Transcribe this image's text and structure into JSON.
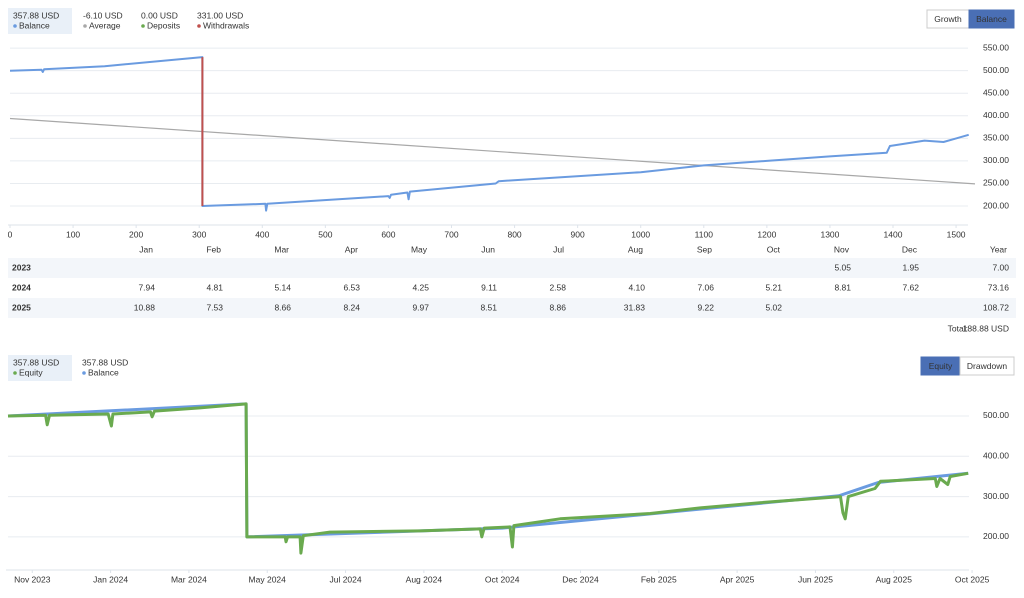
{
  "panels": [
    {
      "stats": [
        {
          "value": "357.88 USD",
          "label": "Balance",
          "color": "#6a9be0"
        },
        {
          "value": "-6.10 USD",
          "label": "Average",
          "color": "#a8a8a8"
        },
        {
          "value": "0.00 USD",
          "label": "Deposits",
          "color": "#6aaa4f"
        },
        {
          "value": "331.00 USD",
          "label": "Withdrawals",
          "color": "#c0504d"
        }
      ],
      "buttons": [
        "Growth",
        "Balance"
      ],
      "active": 1
    },
    {
      "stats": [
        {
          "value": "357.88 USD",
          "label": "Equity",
          "color": "#6aaa4f"
        },
        {
          "value": "357.88 USD",
          "label": "Balance",
          "color": "#6a9be0"
        }
      ],
      "buttons": [
        "Equity",
        "Drawdown"
      ],
      "active": 0
    }
  ],
  "chart_data": [
    {
      "type": "line",
      "grid": true,
      "xlim": [
        0,
        1530
      ],
      "xticks": [
        0,
        100,
        200,
        300,
        400,
        500,
        600,
        700,
        800,
        900,
        1000,
        1100,
        1200,
        1300,
        1400,
        1500
      ],
      "ylim": [
        158,
        568
      ],
      "yticks": [
        {
          "value": 200,
          "label": "200.00"
        },
        {
          "value": 250,
          "label": "250.00"
        },
        {
          "value": 300,
          "label": "300.00"
        },
        {
          "value": 350,
          "label": "350.00"
        },
        {
          "value": 400,
          "label": "400.00"
        },
        {
          "value": 450,
          "label": "450.00"
        },
        {
          "value": 500,
          "label": "500.00"
        },
        {
          "value": 550,
          "label": "550.00"
        }
      ],
      "series": [
        {
          "name": "Average",
          "color": "#a8a8a8",
          "x": [
            0,
            1530
          ],
          "values": [
            394,
            249
          ]
        },
        {
          "name": "Balance",
          "color": "#6a9be0",
          "x": [
            0,
            50,
            52,
            54,
            150,
            305,
            305,
            405,
            406,
            408,
            600,
            602,
            604,
            630,
            632,
            634,
            770,
            775,
            1000,
            1100,
            1200,
            1300,
            1390,
            1395,
            1450,
            1480,
            1500,
            1520
          ],
          "values": [
            500,
            502,
            497,
            503,
            510,
            530,
            200,
            205,
            190,
            205,
            222,
            218,
            225,
            230,
            215,
            232,
            250,
            255,
            275,
            290,
            300,
            310,
            318,
            333,
            345,
            342,
            350,
            357.88
          ]
        },
        {
          "name": "Withdrawals",
          "color": "#c0504d",
          "x": [
            305,
            305
          ],
          "values": [
            530,
            200
          ]
        }
      ]
    },
    {
      "type": "line",
      "grid": true,
      "xlim": [
        -0.31,
        12.05
      ],
      "xticks": [
        {
          "value": 0,
          "label": "Nov 2023"
        },
        {
          "value": 1,
          "label": "Jan 2024"
        },
        {
          "value": 2,
          "label": "Mar 2024"
        },
        {
          "value": 3,
          "label": "May 2024"
        },
        {
          "value": 4,
          "label": "Jul 2024"
        },
        {
          "value": 5,
          "label": "Aug 2024"
        },
        {
          "value": 6,
          "label": "Oct 2024"
        },
        {
          "value": 7,
          "label": "Dec 2024"
        },
        {
          "value": 8,
          "label": "Feb 2025"
        },
        {
          "value": 9,
          "label": "Apr 2025"
        },
        {
          "value": 10,
          "label": "Jun 2025"
        },
        {
          "value": 11,
          "label": "Aug 2025"
        },
        {
          "value": 12,
          "label": "Oct 2025"
        }
      ],
      "ylim": [
        118,
        552
      ],
      "yticks": [
        {
          "value": 200,
          "label": "200.00"
        },
        {
          "value": 300,
          "label": "300.00"
        },
        {
          "value": 400,
          "label": "400.00"
        },
        {
          "value": 500,
          "label": "500.00"
        }
      ],
      "series": [
        {
          "name": "Equity",
          "color": "#6aaa4f",
          "x": [
            -0.31,
            0.17,
            0.19,
            0.22,
            0.97,
            1.01,
            1.03,
            1.51,
            1.53,
            1.56,
            2.14,
            2.73,
            2.74,
            3.23,
            3.24,
            3.26,
            3.42,
            3.43,
            3.46,
            3.8,
            4.95,
            5.72,
            5.74,
            5.77,
            6.1,
            6.13,
            6.15,
            6.74,
            7.89,
            8.53,
            9.29,
            10.19,
            10.32,
            10.35,
            10.38,
            10.42,
            10.76,
            10.83,
            11.53,
            11.55,
            11.59,
            11.69,
            11.72,
            11.95
          ],
          "values": [
            500,
            502,
            478,
            502,
            505,
            475,
            505,
            510,
            498,
            512,
            520,
            530,
            200,
            200,
            188,
            200,
            200,
            160,
            203,
            212,
            215,
            220,
            200,
            222,
            225,
            175,
            228,
            245,
            258,
            272,
            285,
            298,
            300,
            260,
            245,
            300,
            320,
            338,
            345,
            325,
            345,
            330,
            350,
            357.88
          ]
        },
        {
          "name": "Balance",
          "color": "#6a9be0",
          "x": [
            -0.31,
            2.73,
            2.74,
            6,
            10.3,
            10.8,
            11.95
          ],
          "values": [
            500,
            530,
            200,
            222,
            302,
            335,
            357.88
          ]
        }
      ]
    }
  ],
  "returns_table": {
    "columns": [
      "Jan",
      "Feb",
      "Mar",
      "Apr",
      "May",
      "Jun",
      "Jul",
      "Aug",
      "Sep",
      "Oct",
      "Nov",
      "Dec",
      "Year"
    ],
    "rows": [
      {
        "year": "2023",
        "cells": [
          null,
          null,
          null,
          null,
          null,
          null,
          null,
          null,
          null,
          null,
          "5.05",
          "1.95",
          "7.00"
        ]
      },
      {
        "year": "2024",
        "cells": [
          "7.94",
          "4.81",
          "5.14",
          "6.53",
          "4.25",
          "9.11",
          "2.58",
          "4.10",
          "7.06",
          "5.21",
          "8.81",
          "7.62",
          "73.16"
        ]
      },
      {
        "year": "2025",
        "cells": [
          "10.88",
          "7.53",
          "8.66",
          "8.24",
          "9.97",
          "8.51",
          "8.86",
          "31.83",
          "9.22",
          "5.02",
          null,
          null,
          "108.72"
        ]
      }
    ],
    "total": {
      "label": "Total:",
      "value": "188.88 USD"
    }
  }
}
